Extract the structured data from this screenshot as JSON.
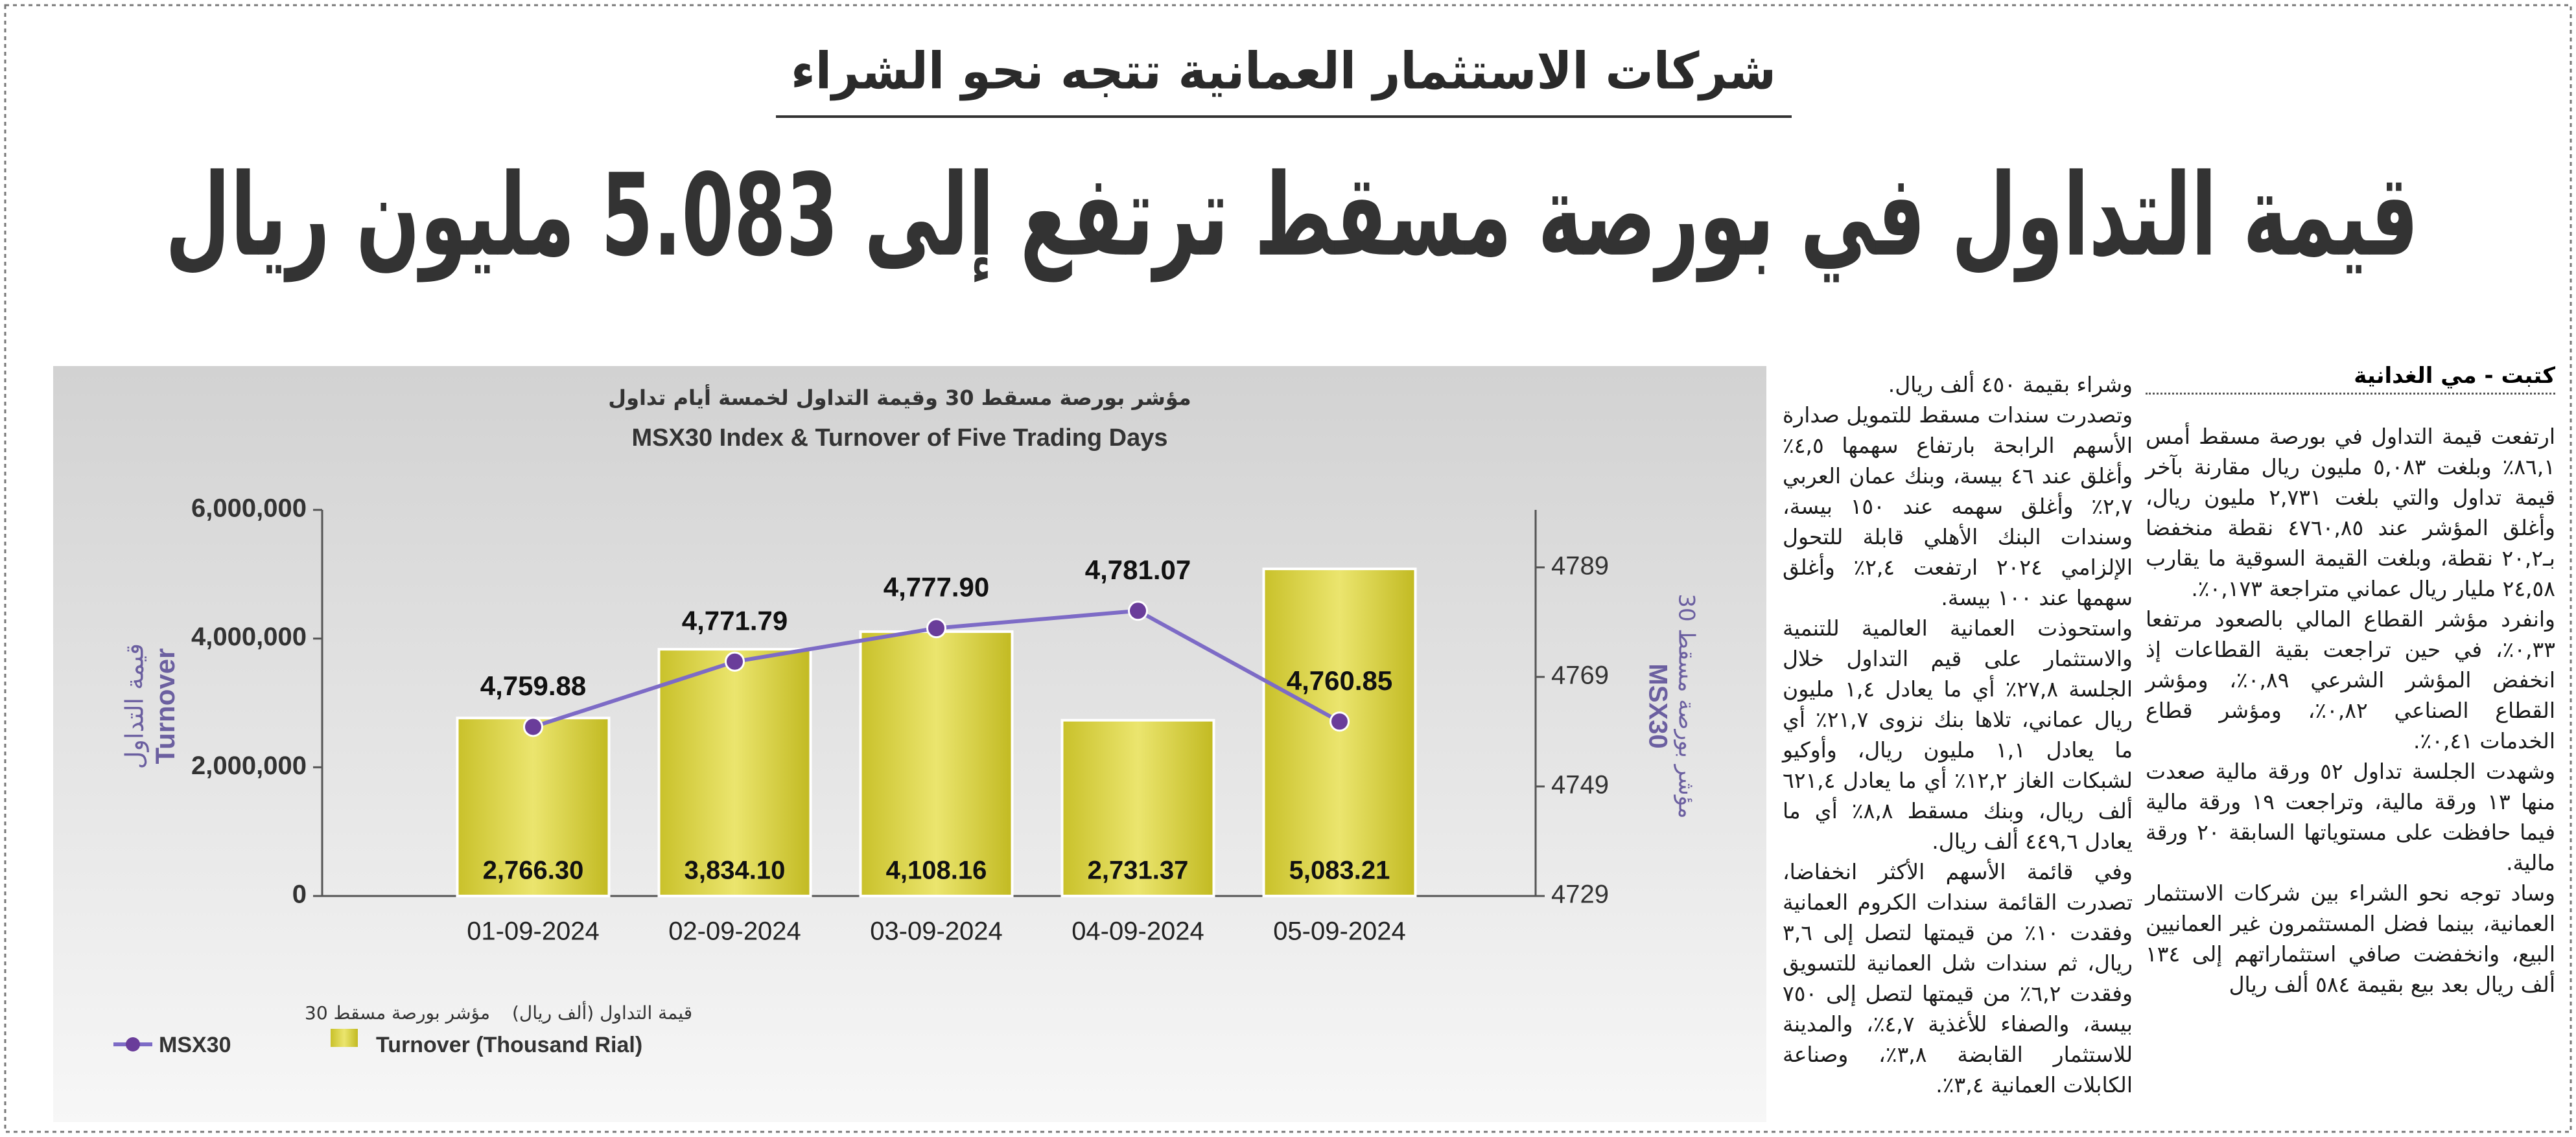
{
  "header": {
    "kicker": "شركات الاستثمار العمانية تتجه نحو الشراء",
    "headline": "قيمة التداول في بورصة مسقط ترتفع إلى 5.083 مليون ريال"
  },
  "article": {
    "byline": "كتبت - مي الغدانية",
    "columns": [
      [
        "ارتفعت قيمة التداول في بورصة مسقط أمس ٨٦,١٪ وبلغت ٥,٠٨٣ مليون ريال مقارنة بآخر قيمة تداول والتي بلغت ٢,٧٣١ مليون ريال، وأغلق المؤشر عند ٤٧٦٠,٨٥ نقطة منخفضا بـ٢٠,٢ نقطة، وبلغت القيمة السوقية ما يقارب ٢٤,٥٨ مليار ريال عماني متراجعة ٠,١٧٣٪.",
        "وانفرد مؤشر القطاع المالي بالصعود مرتفعا ٠,٣٣٪، في حين تراجعت بقية القطاعات إذ انخفض المؤشر الشرعي ٠,٨٩٪، ومؤشر القطاع الصناعي ٠,٨٢٪، ومؤشر قطاع الخدمات ٠,٤١٪.",
        "وشهدت الجلسة تداول ٥٢ ورقة مالية صعدت منها ١٣ ورقة مالية، وتراجعت ١٩ ورقة مالية فيما حافظت على مستوياتها السابقة ٢٠ ورقة مالية.",
        "وساد توجه نحو الشراء بين شركات الاستثمار العمانية، بينما فضل المستثمرون غير العمانيين البيع، وانخفضت صافي استثماراتهم إلى ١٣٤ ألف ريال بعد بيع بقيمة ٥٨٤ ألف ريال"
      ],
      [
        "وشراء بقيمة ٤٥٠ ألف ريال.",
        "وتصدرت سندات مسقط للتمويل صدارة الأسهم الرابحة بارتفاع سهمها ٤,٥٪ وأغلق عند ٤٦ بيسة، وبنك عمان العربي ٢,٧٪ وأغلق سهمه عند ١٥٠ بيسة، وسندات البنك الأهلي قابلة للتحول الإلزامي ٢٠٢٤ ارتفعت ٢,٤٪ وأغلق سهمها عند ١٠٠ بيسة.",
        "واستحوذت العمانية العالمية للتنمية والاستثمار على قيم التداول خلال الجلسة ٢٧,٨٪ أي ما يعادل ١,٤ مليون ريال عماني، تلاها بنك نزوى ٢١,٧٪ أي ما يعادل ١,١ مليون ريال، وأوكيو لشبكات الغاز ١٢,٢٪ أي ما يعادل ٦٢١,٤ ألف ريال، وبنك مسقط ٨,٨٪ أي ما يعادل ٤٤٩,٦ ألف ريال.",
        "وفي قائمة الأسهم الأكثر انخفاضا، تصدرت القائمة سندات الكروم العمانية وفقدت ١٠٪ من قيمتها لتصل إلى ٣,٦ ريال، ثم سندات شل العمانية للتسويق وفقدت ٦,٢٪ من قيمتها لتصل إلى ٧٥٠ بيسة، والصفاء للأغذية ٤,٧٪، والمدينة للاستثمار القابضة ٣,٨٪، وصناعة الكابلات العمانية ٣,٤٪."
      ]
    ]
  },
  "chart_data": {
    "type": "bar",
    "title_ar": "مؤشر بورصة مسقط 30 وقيمة التداول لخمسة أيام تداول",
    "title": "MSX30 Index & Turnover of Five Trading Days",
    "ylabel_ar": "قيمة التداول",
    "ylabel": "Turnover",
    "y2label_ar": "مؤشر بورصة مسقط 30",
    "y2label": "MSX30",
    "categories": [
      "01-09-2024",
      "02-09-2024",
      "03-09-2024",
      "04-09-2024",
      "05-09-2024"
    ],
    "series": [
      {
        "name": "Turnover (Thousand Rial)",
        "name_ar": "قيمة التداول (ألف ريال)",
        "type": "bar",
        "color": "#d6cf3a",
        "values": [
          2766300,
          3834100,
          4108160,
          2731370,
          5083210
        ],
        "value_labels": [
          "2,766.30",
          "3,834.10",
          "4,108.16",
          "2,731.37",
          "5,083.21"
        ]
      },
      {
        "name": "MSX30",
        "name_ar": "مؤشر بورصة مسقط 30",
        "type": "line",
        "axis": "y2",
        "color": "#7d6bc6",
        "values": [
          4759.88,
          4771.79,
          4777.9,
          4781.07,
          4760.85
        ],
        "value_labels": [
          "4,759.88",
          "4,771.79",
          "4,777.90",
          "4,781.07",
          "4,760.85"
        ]
      }
    ],
    "ylim": [
      0,
      6000000
    ],
    "yticks": [
      0,
      {
        "value": 2000000,
        "label": "2,000,000"
      },
      {
        "value": 4000000,
        "label": "4,000,000"
      },
      {
        "value": 6000000,
        "label": "6,000,000"
      }
    ],
    "y2lim": [
      4729,
      4799.5
    ],
    "y2ticks": [
      4729,
      4749,
      4769,
      4789
    ]
  }
}
